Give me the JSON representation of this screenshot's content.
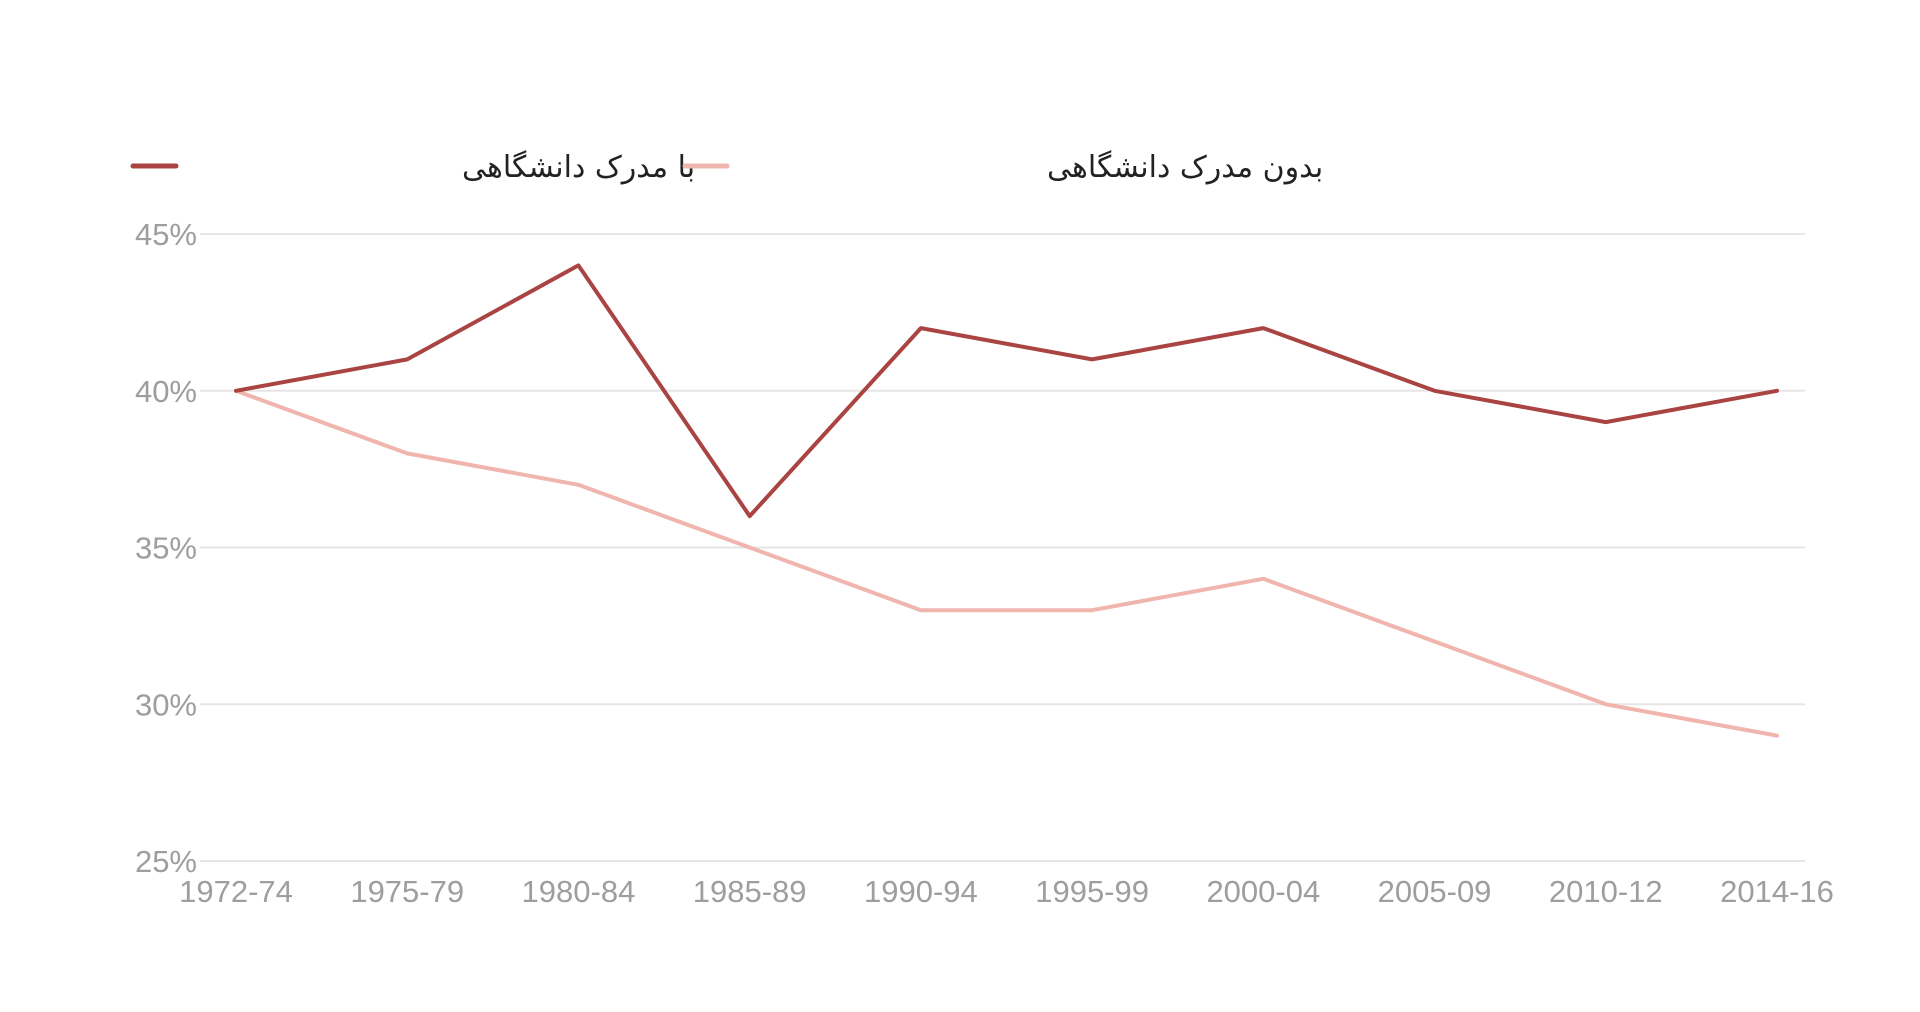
{
  "chart_data": {
    "type": "line",
    "title": "",
    "xlabel": "",
    "ylabel": "",
    "categories": [
      "1972-74",
      "1975-79",
      "1980-84",
      "1985-89",
      "1990-94",
      "1995-99",
      "2000-04",
      "2005-09",
      "2010-12",
      "2014-16"
    ],
    "ylim": [
      25,
      45
    ],
    "yticks": [
      45,
      40,
      35,
      30,
      25
    ],
    "ytick_labels": [
      "45%",
      "40%",
      "35%",
      "30%",
      "25%"
    ],
    "grid": true,
    "legend_position": "top-left",
    "series": [
      {
        "name": "با مدرک دانشگاهی",
        "color": "#a94442",
        "values": [
          40,
          41,
          44,
          36,
          42,
          41,
          42,
          40,
          39,
          40
        ]
      },
      {
        "name": "بدون مدرک دانشگاهی",
        "color": "#f0b5ad",
        "values": [
          40,
          38,
          37,
          35,
          33,
          33,
          34,
          32,
          30,
          29
        ]
      }
    ]
  }
}
